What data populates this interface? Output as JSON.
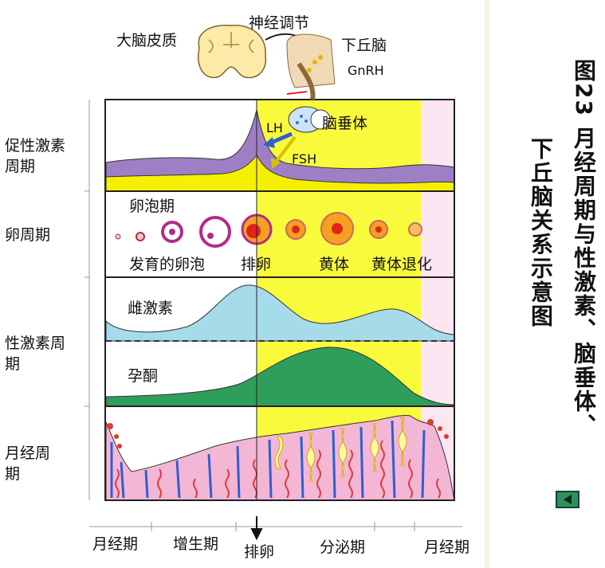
{
  "title_col1": "图23 月经周期与性激素、脑垂体、",
  "title_col2": "下丘脑关系示意图",
  "top": {
    "cortex": "大脑皮质",
    "regulation": "神经调节",
    "hypothalamus": "下丘脑",
    "gnrh": "GnRH",
    "pituitary": "脑垂体",
    "lh": "LH",
    "fsh": "FSH"
  },
  "rows": {
    "gonadotropin": "促性激素周期",
    "ovarian": "卵周期",
    "sex_hormone": "性激素周期",
    "menstrual": "月经周期"
  },
  "ovary": {
    "follicular": "卵泡期",
    "developing": "发育的卵泡",
    "ovulation": "排卵",
    "corpus_luteum": "黄体",
    "regression": "黄体退化"
  },
  "hormones": {
    "estrogen": "雌激素",
    "progesterone": "孕酮"
  },
  "phases": {
    "menses1": "月经期",
    "proliferative": "增生期",
    "ovulation": "排卵",
    "secretory": "分泌期",
    "menses2": "月经期"
  },
  "colors": {
    "luteal_band": "#fafa3c",
    "lh": "#9e7fc6",
    "fsh": "#f5f000",
    "estrogen": "#a6dbea",
    "progesterone": "#2e9e5b",
    "endometrium": "#f3b7d5",
    "border": "#222222"
  },
  "nav": {
    "icon": "back-arrow-icon"
  }
}
